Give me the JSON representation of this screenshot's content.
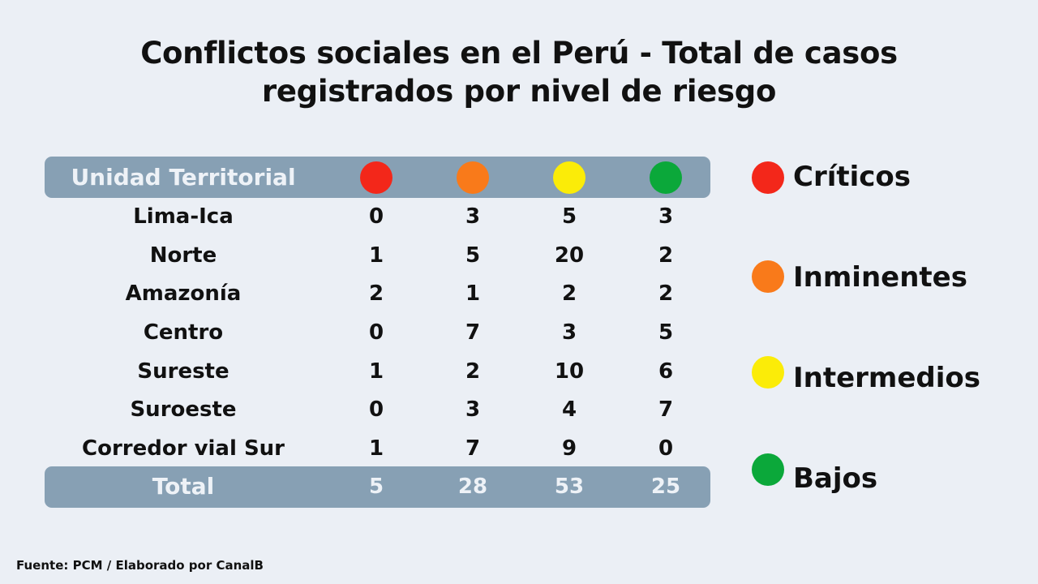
{
  "title_line1": "Conflictos sociales en el Perú - Total de casos",
  "title_line2": "registrados por nivel de riesgo",
  "source": "Fuente: PCM / Elaborado por CanalB",
  "chart_data": {
    "type": "table",
    "title": "Conflictos sociales en el Perú - Total de casos registrados por nivel de riesgo",
    "header": "Unidad Territorial",
    "columns": [
      {
        "name": "Críticos",
        "color": "#f3271a"
      },
      {
        "name": "Inminentes",
        "color": "#f97a1a"
      },
      {
        "name": "Intermedios",
        "color": "#fbec08"
      },
      {
        "name": "Bajos",
        "color": "#0ba83a"
      }
    ],
    "rows": [
      {
        "label": "Lima-Ica",
        "values": [
          0,
          3,
          5,
          3
        ]
      },
      {
        "label": "Norte",
        "values": [
          1,
          5,
          20,
          2
        ]
      },
      {
        "label": "Amazonía",
        "values": [
          2,
          1,
          2,
          2
        ]
      },
      {
        "label": "Centro",
        "values": [
          0,
          7,
          3,
          5
        ]
      },
      {
        "label": "Sureste",
        "values": [
          1,
          2,
          10,
          6
        ]
      },
      {
        "label": "Suroeste",
        "values": [
          0,
          3,
          4,
          7
        ]
      },
      {
        "label": "Corredor vial Sur",
        "values": [
          1,
          7,
          9,
          0
        ]
      }
    ],
    "total": {
      "label": "Total",
      "values": [
        5,
        28,
        53,
        25
      ]
    },
    "legend_position": "right"
  }
}
